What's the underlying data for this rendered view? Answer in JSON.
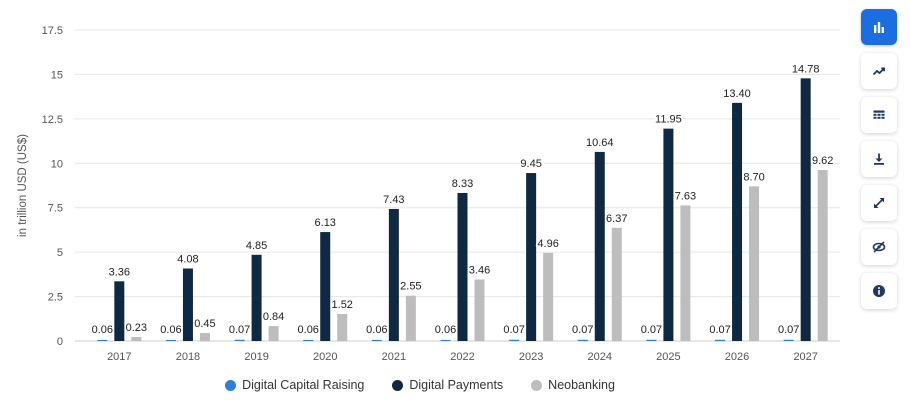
{
  "chart_data": {
    "type": "bar",
    "categories": [
      "2017",
      "2018",
      "2019",
      "2020",
      "2021",
      "2022",
      "2023",
      "2024",
      "2025",
      "2026",
      "2027"
    ],
    "series": [
      {
        "name": "Digital Capital Raising",
        "color": "#2f7ed8",
        "values": [
          0.06,
          0.06,
          0.07,
          0.06,
          0.06,
          0.06,
          0.07,
          0.07,
          0.07,
          0.07,
          0.07
        ],
        "labels": [
          "0.06",
          "0.06",
          "0.07",
          "0.06",
          "0.06",
          "0.06",
          "0.07",
          "0.07",
          "0.07",
          "0.07",
          "0.07"
        ]
      },
      {
        "name": "Digital Payments",
        "color": "#0f2942",
        "values": [
          3.36,
          4.08,
          4.85,
          6.13,
          7.43,
          8.33,
          9.45,
          10.64,
          11.95,
          13.4,
          14.78
        ],
        "labels": [
          "3.36",
          "4.08",
          "4.85",
          "6.13",
          "7.43",
          "8.33",
          "9.45",
          "10.64",
          "11.95",
          "13.40",
          "14.78"
        ]
      },
      {
        "name": "Neobanking",
        "color": "#bdbdbd",
        "values": [
          0.23,
          0.45,
          0.84,
          1.52,
          2.55,
          3.46,
          4.96,
          6.37,
          7.63,
          8.7,
          9.62
        ],
        "labels": [
          "0.23",
          "0.45",
          "0.84",
          "1.52",
          "2.55",
          "3.46",
          "4.96",
          "6.37",
          "7.63",
          "8.70",
          "9.62"
        ]
      }
    ],
    "ylabel": "in trillion USD (US$)",
    "ylim": [
      0,
      17.5
    ],
    "yticks": [
      0,
      2.5,
      5,
      7.5,
      10,
      12.5,
      15,
      17.5
    ],
    "ytick_labels": [
      "0",
      "2.5",
      "5",
      "7.5",
      "10",
      "12.5",
      "15",
      "17.5"
    ],
    "grid": true,
    "legend_position": "bottom"
  },
  "legend": {
    "items": [
      {
        "label": "Digital Capital Raising",
        "color": "#2f7ed8"
      },
      {
        "label": "Digital Payments",
        "color": "#0f2942"
      },
      {
        "label": "Neobanking",
        "color": "#bdbdbd"
      }
    ]
  },
  "toolbar": {
    "active_color": "#1a6ee0",
    "icon_color": "#1f3a5f",
    "buttons": [
      {
        "icon": "bar-chart-icon",
        "active": true
      },
      {
        "icon": "trend-line-icon",
        "active": false
      },
      {
        "icon": "table-icon",
        "active": false
      },
      {
        "icon": "download-icon",
        "active": false
      },
      {
        "icon": "fullscreen-icon",
        "active": false
      },
      {
        "icon": "hide-icon",
        "active": false
      },
      {
        "icon": "info-icon",
        "active": false
      }
    ]
  }
}
